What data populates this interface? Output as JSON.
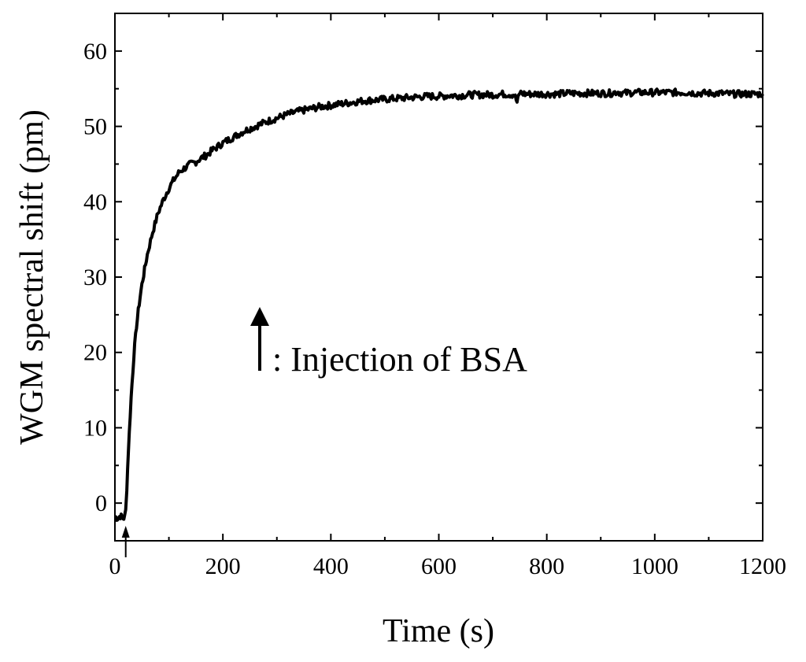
{
  "chart_data": {
    "type": "line",
    "title": "",
    "xlabel": "Time (s)",
    "ylabel": "WGM spectral shift  (pm)",
    "xlim": [
      0,
      1200
    ],
    "ylim": [
      -5,
      65
    ],
    "x_ticks": [
      0,
      200,
      400,
      600,
      800,
      1000,
      1200
    ],
    "x_tick_labels": [
      "0",
      "200",
      "400",
      "600",
      "800",
      "1000",
      "1200"
    ],
    "y_ticks": [
      0,
      10,
      20,
      30,
      40,
      50,
      60
    ],
    "y_tick_labels": [
      "0",
      "10",
      "20",
      "30",
      "40",
      "50",
      "60"
    ],
    "grid": false,
    "annotation": {
      "text": ": Injection of BSA",
      "injection_time": 20
    },
    "series": [
      {
        "color": "#000000",
        "x": [
          0,
          5,
          10,
          15,
          18,
          20,
          22,
          25,
          30,
          35,
          40,
          45,
          50,
          55,
          60,
          70,
          80,
          90,
          100,
          110,
          120,
          130,
          140,
          150,
          160,
          170,
          180,
          200,
          220,
          240,
          260,
          280,
          300,
          320,
          340,
          360,
          380,
          400,
          420,
          440,
          460,
          480,
          500,
          520,
          540,
          560,
          580,
          600,
          620,
          640,
          660,
          680,
          700,
          720,
          740,
          745,
          750,
          760,
          780,
          800,
          820,
          840,
          860,
          880,
          900,
          920,
          930,
          940,
          960,
          980,
          1000,
          1020,
          1040,
          1060,
          1080,
          1100,
          1120,
          1140,
          1160,
          1180,
          1200
        ],
        "y": [
          -1.8,
          -2.0,
          -1.7,
          -2.0,
          -1.9,
          -1.0,
          2.0,
          7.0,
          14.0,
          19.5,
          23.5,
          26.5,
          29.0,
          31.0,
          33.0,
          36.0,
          38.5,
          40.3,
          41.8,
          43.0,
          44.0,
          44.5,
          45.0,
          45.3,
          45.8,
          46.2,
          46.8,
          47.8,
          48.6,
          49.4,
          50.0,
          50.6,
          51.1,
          51.6,
          52.0,
          52.3,
          52.6,
          52.8,
          53.0,
          53.2,
          53.4,
          53.5,
          53.6,
          53.7,
          53.8,
          53.9,
          54.0,
          54.0,
          54.1,
          54.1,
          54.2,
          54.2,
          54.2,
          54.3,
          54.2,
          53.2,
          54.5,
          54.3,
          54.3,
          54.3,
          54.3,
          54.4,
          54.4,
          54.4,
          54.4,
          54.4,
          54.6,
          54.4,
          54.5,
          54.5,
          54.5,
          54.5,
          54.5,
          54.5,
          54.4,
          54.4,
          54.4,
          54.3,
          54.3,
          54.3,
          54.3
        ]
      }
    ]
  }
}
